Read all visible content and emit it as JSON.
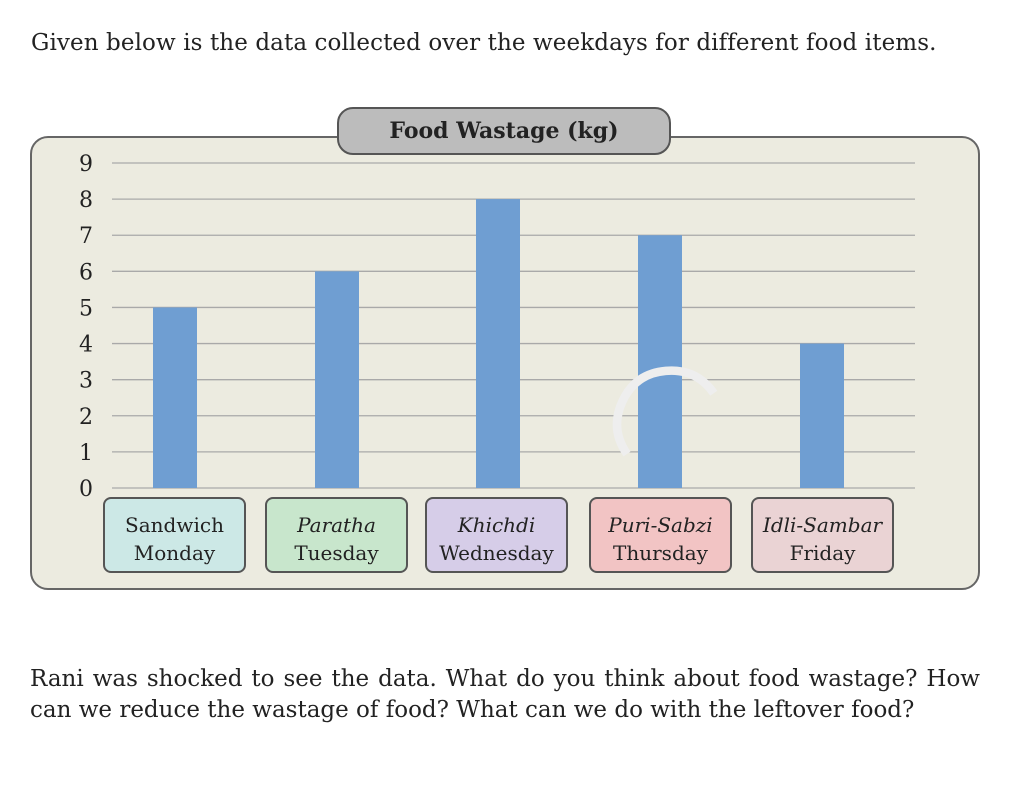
{
  "intro_text": "Given below is the data collected over the weekdays for different food items.",
  "question_text": "Rani was shocked to see the data. What do you think about food wastage? How can we reduce the wastage of food? What can we do with the leftover food?",
  "colors": {
    "bar": "#6f9ed2",
    "chart_bg": "#ecebe0",
    "title_bg": "#bcbcbc",
    "gridline": "#a9a9a9"
  },
  "chart_data": {
    "type": "bar",
    "title": "Food Wastage (kg)",
    "ylim": [
      0,
      9
    ],
    "y_ticks": [
      "0",
      "1",
      "2",
      "3",
      "4",
      "5",
      "6",
      "7",
      "8",
      "9"
    ],
    "grid": true,
    "categories": [
      {
        "food": "Sandwich",
        "day": "Monday",
        "italic": false,
        "box_color": "#cce8e6"
      },
      {
        "food": "Paratha",
        "day": "Tuesday",
        "italic": true,
        "box_color": "#c8e6cc"
      },
      {
        "food": "Khichdi",
        "day": "Wednesday",
        "italic": true,
        "box_color": "#d6cde8"
      },
      {
        "food": "Puri-Sabzi",
        "day": "Thursday",
        "italic": true,
        "box_color": "#f2c4c4"
      },
      {
        "food": "Idli-Sambar",
        "day": "Friday",
        "italic": true,
        "box_color": "#ead3d4"
      }
    ],
    "values": [
      5,
      6,
      8,
      7,
      4
    ]
  }
}
